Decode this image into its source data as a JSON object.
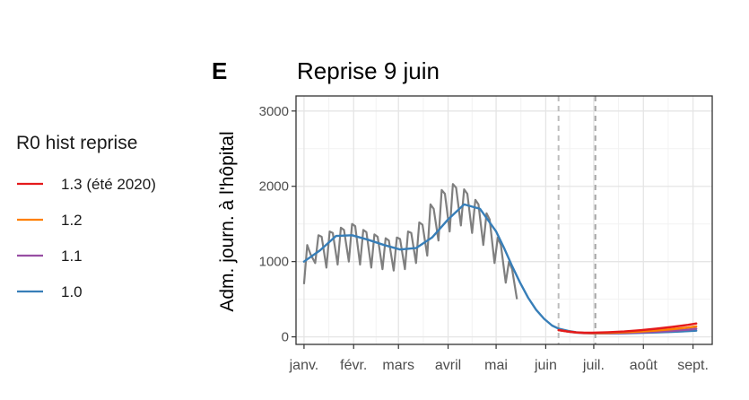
{
  "panel": {
    "tag": "E",
    "title": "Reprise 9 juin"
  },
  "legend": {
    "title": "R0 hist reprise",
    "items": [
      {
        "label": "1.3 (été 2020)",
        "color": "#e41a1c"
      },
      {
        "label": "1.2",
        "color": "#ff7f00"
      },
      {
        "label": "1.1",
        "color": "#984ea3"
      },
      {
        "label": "1.0",
        "color": "#377eb8"
      }
    ]
  },
  "chart_data": {
    "type": "line",
    "title": "Reprise 9 juin",
    "xlabel": "",
    "ylabel": "Adm. journ. à l'hôpital",
    "ylim": [
      -100,
      3200
    ],
    "yticks": [
      0,
      1000,
      2000,
      3000
    ],
    "ytick_labels": [
      "0",
      "1000",
      "2000",
      "3000"
    ],
    "xlim": [
      -5,
      255
    ],
    "x_unit": "day of year 2021 (0 = 1 janv.)",
    "xticks": [
      0,
      31,
      59,
      90,
      120,
      151,
      181,
      212,
      243
    ],
    "xtick_labels": [
      "janv.",
      "févr.",
      "mars",
      "avril",
      "mai",
      "juin",
      "juil.",
      "août",
      "sept."
    ],
    "grid": true,
    "legend_position": "left",
    "vlines": [
      {
        "x": 159,
        "style": "dashed",
        "color": "#bdbdbd"
      },
      {
        "x": 182,
        "style": "dashed",
        "color": "#a6a6a6"
      }
    ],
    "observed": {
      "color": "#7f7f7f",
      "x": [
        0,
        2,
        4,
        7,
        9,
        11,
        14,
        16,
        18,
        21,
        23,
        25,
        28,
        30,
        32,
        35,
        37,
        39,
        42,
        44,
        46,
        49,
        51,
        53,
        56,
        58,
        60,
        63,
        65,
        67,
        70,
        72,
        74,
        77,
        79,
        81,
        84,
        86,
        88,
        91,
        93,
        95,
        98,
        100,
        102,
        105,
        107,
        109,
        112,
        114,
        116,
        119,
        121,
        123,
        126,
        128,
        130,
        133
      ],
      "y": [
        700,
        1220,
        1100,
        980,
        1350,
        1330,
        920,
        1400,
        1380,
        960,
        1450,
        1420,
        1000,
        1500,
        1470,
        960,
        1420,
        1390,
        920,
        1360,
        1330,
        900,
        1310,
        1280,
        880,
        1320,
        1300,
        900,
        1400,
        1380,
        980,
        1520,
        1490,
        1080,
        1760,
        1700,
        1280,
        1950,
        1900,
        1400,
        2030,
        1980,
        1480,
        1960,
        1900,
        1380,
        1820,
        1760,
        1220,
        1640,
        1560,
        980,
        1320,
        1220,
        720,
        1000,
        900,
        500
      ]
    },
    "series": [
      {
        "name": "1.3 (été 2020)",
        "color": "#e41a1c",
        "x": [
          159,
          165,
          170,
          175,
          180,
          185,
          190,
          200,
          210,
          220,
          230,
          240,
          245
        ],
        "y": [
          90,
          70,
          60,
          55,
          55,
          58,
          62,
          72,
          88,
          108,
          132,
          160,
          178
        ]
      },
      {
        "name": "1.2",
        "color": "#ff7f00",
        "x": [
          159,
          165,
          170,
          175,
          180,
          185,
          190,
          200,
          210,
          220,
          230,
          240,
          245
        ],
        "y": [
          90,
          70,
          58,
          52,
          50,
          51,
          53,
          60,
          70,
          85,
          102,
          124,
          138
        ]
      },
      {
        "name": "1.1",
        "color": "#984ea3",
        "x": [
          159,
          165,
          170,
          175,
          180,
          185,
          190,
          200,
          210,
          220,
          230,
          240,
          245
        ],
        "y": [
          90,
          69,
          56,
          49,
          46,
          46,
          47,
          51,
          58,
          68,
          80,
          96,
          108
        ]
      },
      {
        "name": "1.0",
        "color": "#377eb8",
        "x": [
          0,
          10,
          20,
          30,
          40,
          50,
          60,
          70,
          80,
          90,
          100,
          110,
          120,
          125,
          130,
          135,
          140,
          145,
          150,
          155,
          159,
          165,
          170,
          175,
          180,
          185,
          190,
          200,
          210,
          220,
          230,
          240,
          245
        ],
        "y": [
          1000,
          1150,
          1340,
          1350,
          1290,
          1220,
          1160,
          1180,
          1320,
          1560,
          1760,
          1700,
          1400,
          1180,
          940,
          720,
          520,
          360,
          240,
          150,
          110,
          80,
          62,
          52,
          46,
          45,
          45,
          47,
          52,
          58,
          66,
          76,
          82
        ]
      }
    ]
  }
}
